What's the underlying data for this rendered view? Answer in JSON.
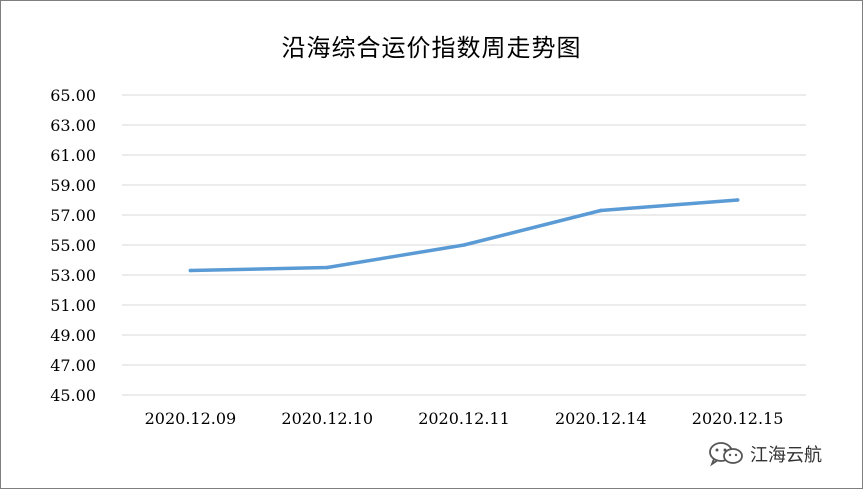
{
  "watermark": {
    "text": "江海云航",
    "icon": "wechat-icon"
  },
  "chart_data": {
    "type": "line",
    "title": "沿海综合运价指数周走势图",
    "xlabel": "",
    "ylabel": "",
    "categories": [
      "2020.12.09",
      "2020.12.10",
      "2020.12.11",
      "2020.12.14",
      "2020.12.15"
    ],
    "series": [
      {
        "values": [
          53.3,
          53.5,
          55.0,
          57.3,
          58.0
        ],
        "color": "#5b9bd5"
      }
    ],
    "ylim": [
      45,
      65
    ],
    "yticks": [
      "65.00",
      "63.00",
      "61.00",
      "59.00",
      "57.00",
      "55.00",
      "53.00",
      "51.00",
      "49.00",
      "47.00",
      "45.00"
    ],
    "grid": true,
    "legend": "none"
  }
}
